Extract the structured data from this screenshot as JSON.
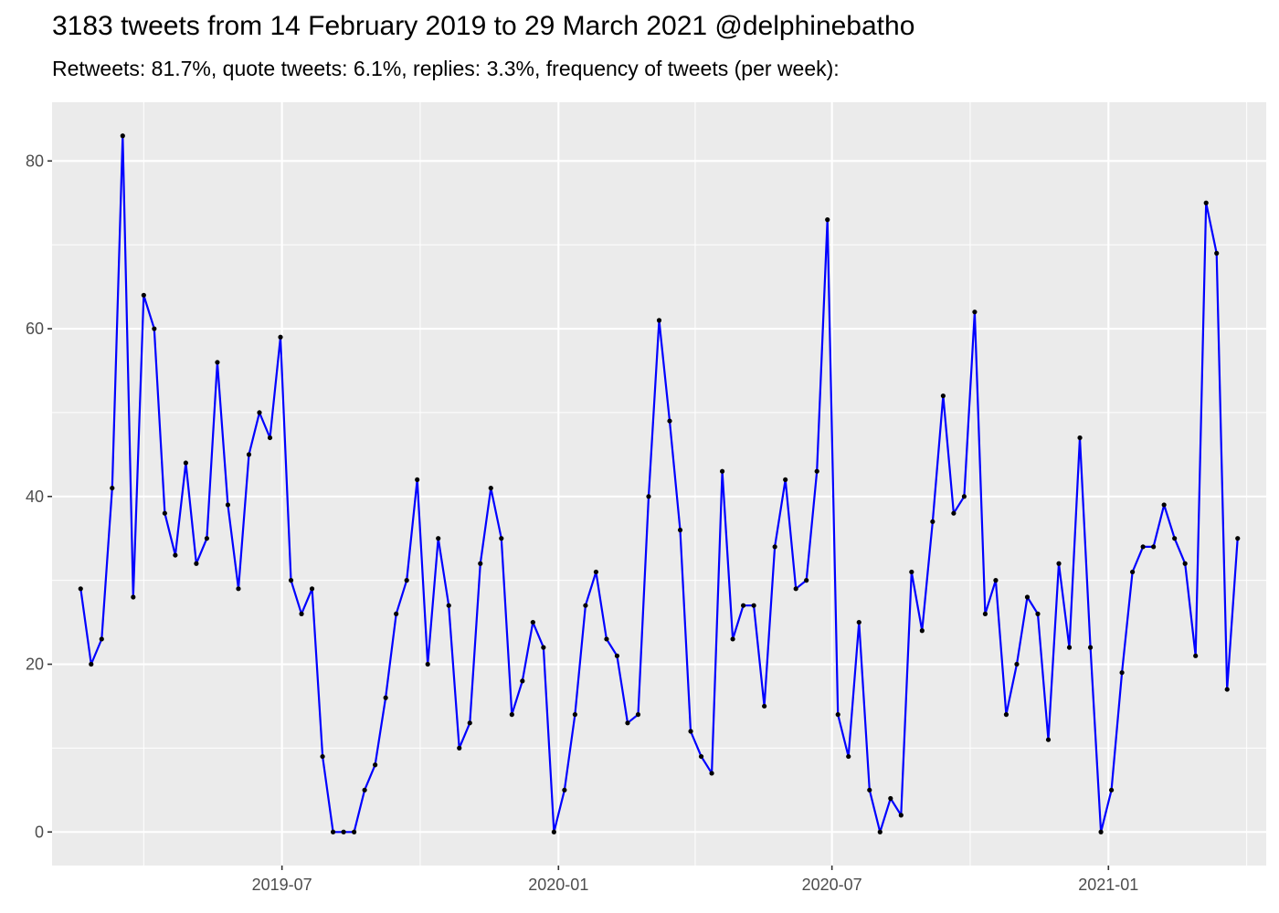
{
  "chart_data": {
    "type": "line",
    "title": "3183 tweets from 14 February 2019 to 29 March 2021 @delphinebatho",
    "subtitle": "Retweets: 81.7%, quote tweets: 6.1%, replies: 3.3%, frequency of tweets (per week):",
    "xlabel": "",
    "ylabel": "",
    "ylim": [
      -4,
      87
    ],
    "xlim": [
      "2019-01-29",
      "2021-04-16"
    ],
    "x_tick_labels": [
      "2019-07",
      "2020-01",
      "2020-07",
      "2021-01"
    ],
    "x_ticks": [
      "2019-07-01",
      "2020-01-01",
      "2020-07-01",
      "2021-01-01"
    ],
    "y_ticks": [
      0,
      20,
      40,
      60,
      80
    ],
    "y_tick_labels": [
      "0",
      "20",
      "40",
      "60",
      "80"
    ],
    "grid": true,
    "line_color": "#0000ff",
    "point_color": "#000000",
    "panel_background": "#ebebeb",
    "x": [
      "2019-02-17",
      "2019-02-24",
      "2019-03-03",
      "2019-03-10",
      "2019-03-17",
      "2019-03-24",
      "2019-03-31",
      "2019-04-07",
      "2019-04-14",
      "2019-04-21",
      "2019-04-28",
      "2019-05-05",
      "2019-05-12",
      "2019-05-19",
      "2019-05-26",
      "2019-06-02",
      "2019-06-09",
      "2019-06-16",
      "2019-06-23",
      "2019-06-30",
      "2019-07-07",
      "2019-07-14",
      "2019-07-21",
      "2019-07-28",
      "2019-08-04",
      "2019-08-11",
      "2019-08-18",
      "2019-08-25",
      "2019-09-01",
      "2019-09-08",
      "2019-09-15",
      "2019-09-22",
      "2019-09-29",
      "2019-10-06",
      "2019-10-13",
      "2019-10-20",
      "2019-10-27",
      "2019-11-03",
      "2019-11-10",
      "2019-11-17",
      "2019-11-24",
      "2019-12-01",
      "2019-12-08",
      "2019-12-15",
      "2019-12-22",
      "2019-12-29",
      "2020-01-05",
      "2020-01-12",
      "2020-01-19",
      "2020-01-26",
      "2020-02-02",
      "2020-02-09",
      "2020-02-16",
      "2020-02-23",
      "2020-03-01",
      "2020-03-08",
      "2020-03-15",
      "2020-03-22",
      "2020-03-29",
      "2020-04-05",
      "2020-04-12",
      "2020-04-19",
      "2020-04-26",
      "2020-05-03",
      "2020-05-10",
      "2020-05-17",
      "2020-05-24",
      "2020-05-31",
      "2020-06-07",
      "2020-06-14",
      "2020-06-21",
      "2020-06-28",
      "2020-07-05",
      "2020-07-12",
      "2020-07-19",
      "2020-07-26",
      "2020-08-02",
      "2020-08-09",
      "2020-08-16",
      "2020-08-23",
      "2020-08-30",
      "2020-09-06",
      "2020-09-13",
      "2020-09-20",
      "2020-09-27",
      "2020-10-04",
      "2020-10-11",
      "2020-10-18",
      "2020-10-25",
      "2020-11-01",
      "2020-11-08",
      "2020-11-15",
      "2020-11-22",
      "2020-11-29",
      "2020-12-06",
      "2020-12-13",
      "2020-12-20",
      "2020-12-27",
      "2021-01-03",
      "2021-01-10",
      "2021-01-17",
      "2021-01-24",
      "2021-01-31",
      "2021-02-07",
      "2021-02-14",
      "2021-02-21",
      "2021-02-28",
      "2021-03-07",
      "2021-03-14",
      "2021-03-21",
      "2021-03-28"
    ],
    "series": [
      {
        "values": [
          29,
          20,
          23,
          41,
          83,
          28,
          64,
          60,
          38,
          33,
          44,
          32,
          35,
          56,
          39,
          29,
          45,
          50,
          47,
          59,
          30,
          26,
          29,
          9,
          0,
          0,
          0,
          5,
          8,
          16,
          26,
          30,
          42,
          20,
          35,
          27,
          10,
          13,
          32,
          41,
          35,
          14,
          18,
          25,
          22,
          0,
          5,
          14,
          27,
          31,
          23,
          21,
          13,
          14,
          40,
          61,
          49,
          36,
          12,
          9,
          7,
          43,
          23,
          27,
          27,
          15,
          34,
          42,
          29,
          30,
          43,
          73,
          14,
          9,
          25,
          5,
          0,
          4,
          2,
          31,
          24,
          37,
          52,
          38,
          40,
          62,
          26,
          30,
          14,
          20,
          28,
          26,
          11,
          32,
          22,
          47,
          22,
          0,
          5,
          19,
          31,
          34,
          34,
          39,
          35,
          32,
          21,
          75,
          69,
          17,
          35
        ]
      }
    ]
  }
}
